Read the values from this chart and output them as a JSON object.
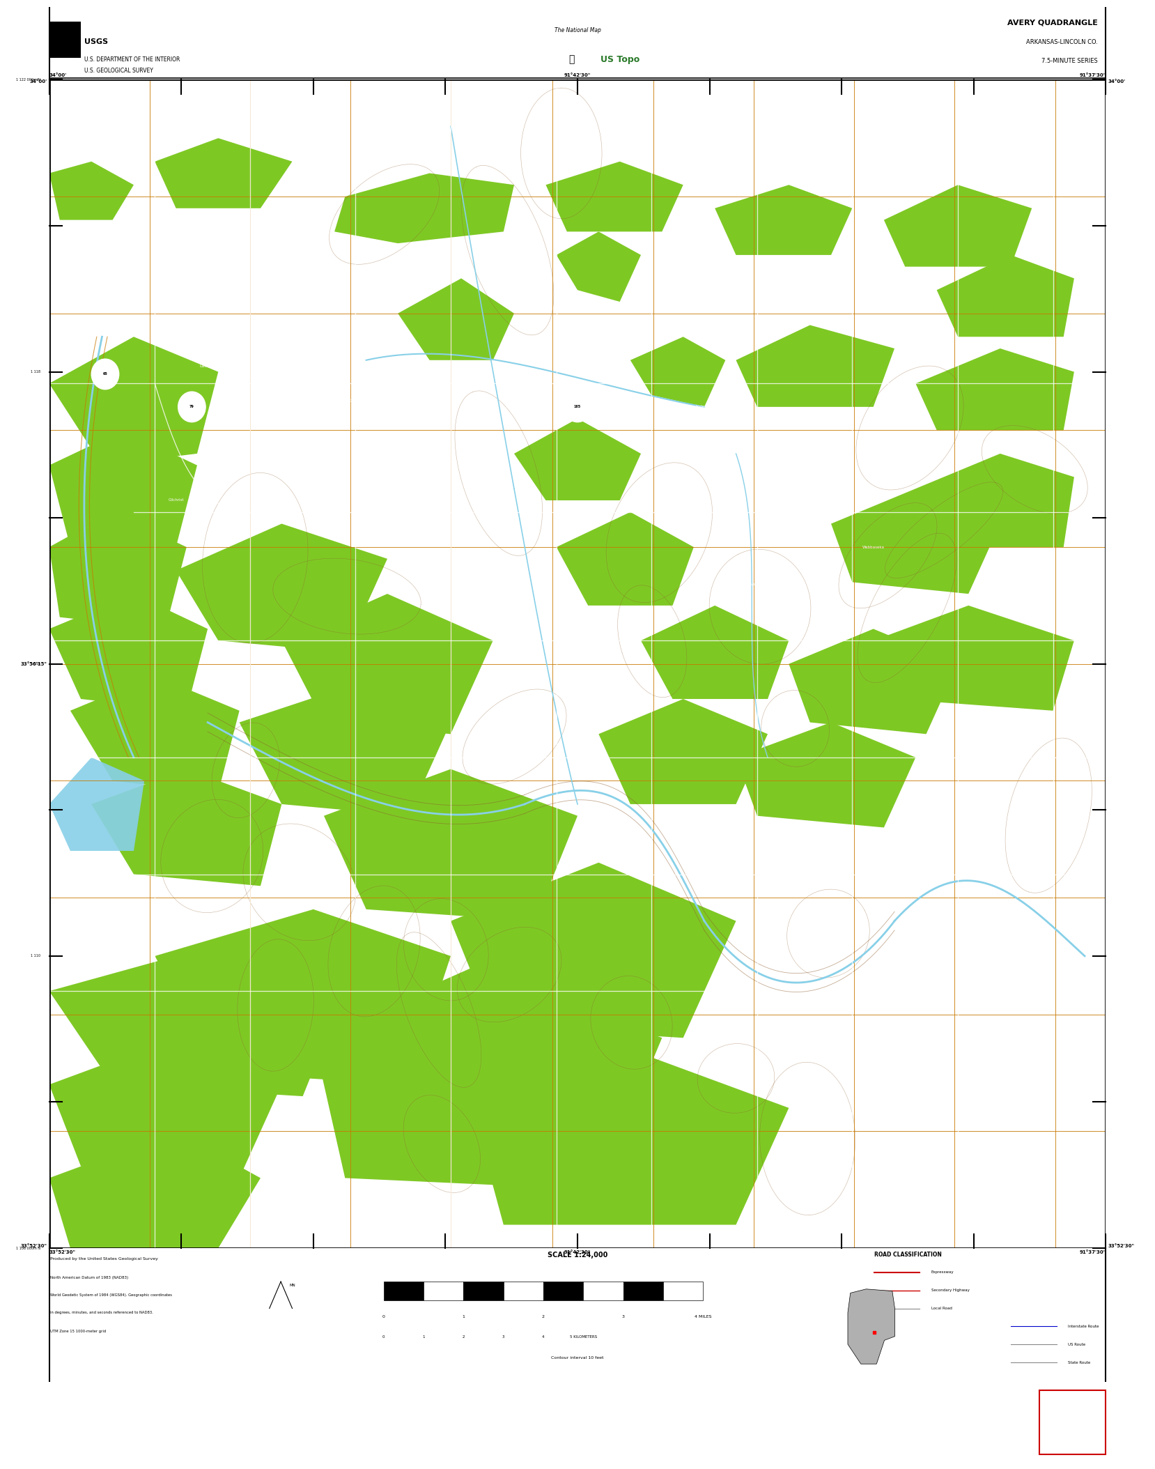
{
  "title": "AVERY QUADRANGLE",
  "subtitle1": "ARKANSAS-LINCOLN CO.",
  "subtitle2": "7.5-MINUTE SERIES",
  "dept_line1": "U.S. DEPARTMENT OF THE INTERIOR",
  "dept_line2": "U.S. GEOLOGICAL SURVEY",
  "national_map_text": "The National Map",
  "us_topo_text": "US Topo",
  "scale_text": "SCALE 1:24,000",
  "map_bg": "#000000",
  "border_bg": "#ffffff",
  "veg_color": "#7ec824",
  "water_color": "#88d0e8",
  "river_color": "#88d0e8",
  "road_orange": "#d4820a",
  "road_white": "#ffffff",
  "contour_color": "#8B5A2B",
  "grid_color": "#c87800",
  "black_bar": "#000000",
  "red_square": "#cc0000",
  "fig_width": 16.38,
  "fig_height": 20.88,
  "map_l": 0.037,
  "map_r": 0.963,
  "map_b": 0.147,
  "map_t": 0.95,
  "header_b": 0.95,
  "footer_b": 0.055,
  "footer_t": 0.147,
  "blackbar_b": 0.0,
  "blackbar_t": 0.055
}
